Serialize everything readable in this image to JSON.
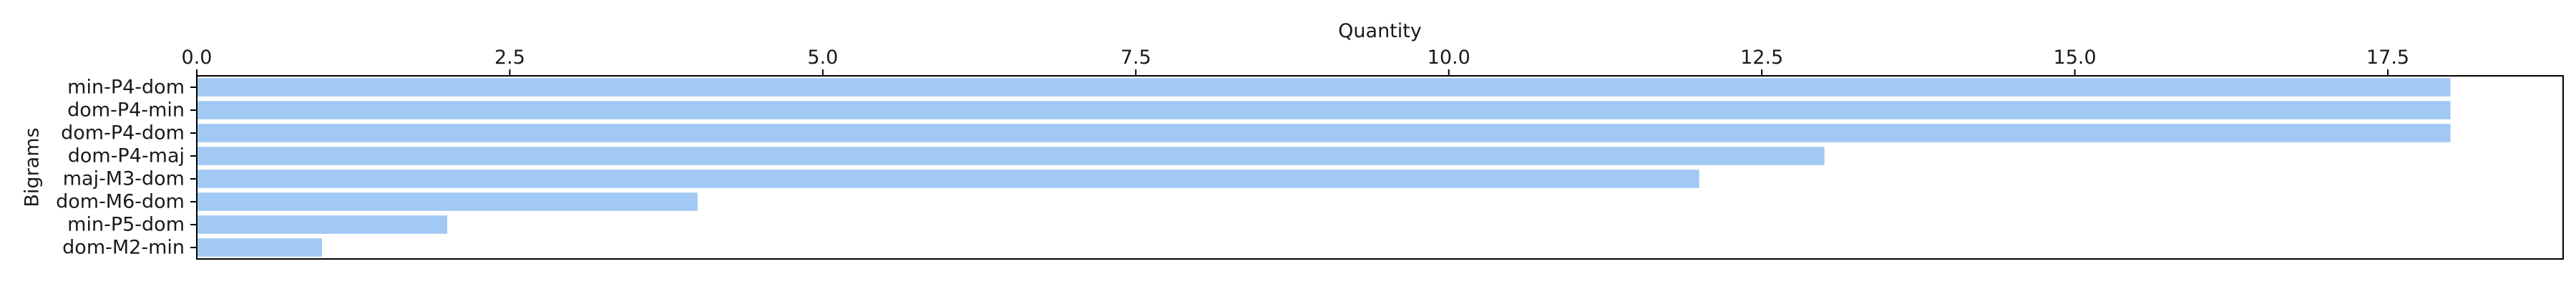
{
  "chart_data": {
    "type": "bar",
    "orientation": "horizontal",
    "categories": [
      "min-P4-dom",
      "dom-P4-min",
      "dom-P4-dom",
      "dom-P4-maj",
      "maj-M3-dom",
      "dom-M6-dom",
      "min-P5-dom",
      "dom-M2-min"
    ],
    "values": [
      18,
      18,
      18,
      13,
      12,
      4,
      2,
      1
    ],
    "title": "",
    "xlabel": "Quantity",
    "ylabel": "Bigrams",
    "xaxis_position": "top",
    "xlim": [
      0,
      18.9
    ],
    "x_ticks": [
      0,
      2.5,
      5,
      7.5,
      10,
      12.5,
      15,
      17.5
    ],
    "x_tick_labels": [
      "0.0",
      "2.5",
      "5.0",
      "7.5",
      "10.0",
      "12.5",
      "15.0",
      "17.5"
    ],
    "grid": false,
    "legend": "none",
    "bar_color": "#a1c9f4"
  }
}
